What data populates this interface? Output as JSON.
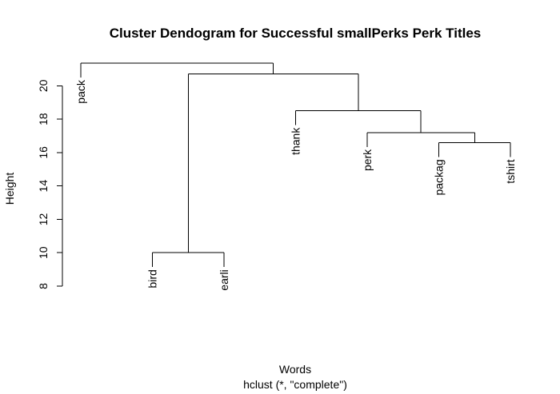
{
  "chart_data": {
    "type": "dendrogram",
    "title": "Cluster Dendogram for Successful smallPerks Perk Titles",
    "xlabel": "Words",
    "sub": "hclust (*, \"complete\")",
    "ylabel": "Height",
    "ylim": [
      8,
      21.5
    ],
    "yticks": [
      8,
      10,
      12,
      14,
      16,
      18,
      20
    ],
    "leaves": [
      {
        "label": "pack"
      },
      {
        "label": "bird"
      },
      {
        "label": "earli"
      },
      {
        "label": "thank"
      },
      {
        "label": "perk"
      },
      {
        "label": "packag"
      },
      {
        "label": "tshirt"
      }
    ],
    "merges": [
      {
        "left": "bird",
        "right": "earli",
        "height": 10.0
      },
      {
        "left": "packag",
        "right": "tshirt",
        "height": 16.6
      },
      {
        "left": "perk",
        "right": "packag+tshirt",
        "height": 17.2
      },
      {
        "left": "thank",
        "right": "perk+packag+tshirt",
        "height": 18.5
      },
      {
        "left": "bird+earli",
        "right": "thank+perk+packag+tshirt",
        "height": 20.7
      },
      {
        "left": "pack",
        "right": "bird+earli+thank+perk+packag+tshirt",
        "height": 21.35
      }
    ]
  }
}
